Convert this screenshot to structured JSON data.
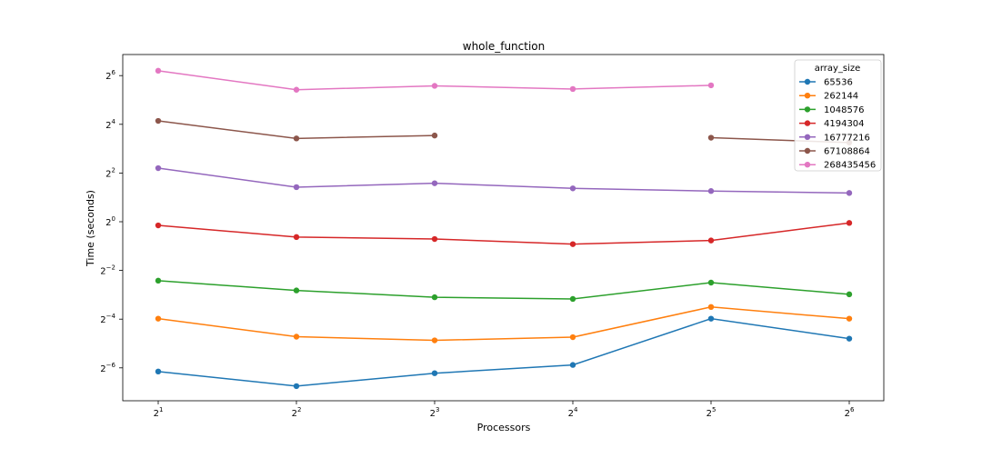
{
  "chart_data": {
    "type": "line",
    "title": "whole_function",
    "xlabel": "Processors",
    "ylabel": "Time (seconds)",
    "xscale": "log2",
    "yscale": "log2",
    "x": [
      2,
      4,
      8,
      16,
      32,
      64
    ],
    "x_tick_base": "2",
    "x_tick_exponents": [
      "1",
      "2",
      "3",
      "4",
      "5",
      "6"
    ],
    "y_tick_base": "2",
    "y_tick_exponents": [
      "−6",
      "−4",
      "−2",
      "0",
      "2",
      "4",
      "6"
    ],
    "ylim_log2": [
      -7.4,
      6.6
    ],
    "grid": false,
    "legend": {
      "title": "array_size",
      "placement": "top-right"
    },
    "series": [
      {
        "name": "65536",
        "color": "#1f77b4",
        "log2_values": [
          -6.15,
          -6.75,
          -6.22,
          -5.88,
          -3.98,
          -4.8
        ]
      },
      {
        "name": "262144",
        "color": "#ff7f0e",
        "log2_values": [
          -3.98,
          -4.72,
          -4.87,
          -4.74,
          -3.5,
          -3.98
        ]
      },
      {
        "name": "1048576",
        "color": "#2ca02c",
        "log2_values": [
          -2.42,
          -2.82,
          -3.1,
          -3.17,
          -2.5,
          -2.98
        ]
      },
      {
        "name": "4194304",
        "color": "#d62728",
        "log2_values": [
          -0.15,
          -0.63,
          -0.71,
          -0.92,
          -0.77,
          -0.05
        ]
      },
      {
        "name": "16777216",
        "color": "#9467bd",
        "log2_values": [
          2.2,
          1.42,
          1.58,
          1.37,
          1.26,
          1.18
        ]
      },
      {
        "name": "67108864",
        "color": "#8c564b",
        "log2_values": [
          4.14,
          3.42,
          3.54,
          null,
          3.45,
          3.25
        ]
      },
      {
        "name": "268435456",
        "color": "#e377c2",
        "log2_values": [
          6.2,
          5.42,
          5.58,
          5.45,
          5.6,
          null
        ]
      }
    ]
  }
}
